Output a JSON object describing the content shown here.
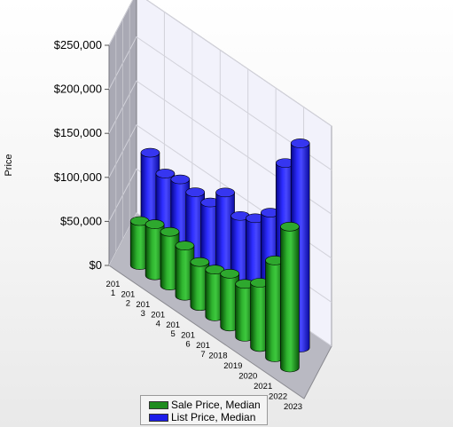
{
  "chart_data": {
    "type": "bar",
    "title": "",
    "xlabel": "",
    "ylabel": "Price",
    "ylim": [
      0,
      250000
    ],
    "y_ticks": [
      "$0",
      "$50,000",
      "$100,000",
      "$150,000",
      "$200,000",
      "$250,000"
    ],
    "y_tick_values": [
      0,
      50000,
      100000,
      150000,
      200000,
      250000
    ],
    "categories": [
      "201\n1",
      "201\n2",
      "201\n3",
      "201\n4",
      "201\n5",
      "201\n6",
      "201\n7",
      "2018",
      "2019",
      "2020",
      "2021",
      "2022",
      "2023"
    ],
    "series": [
      {
        "name": "Sale Price, Median",
        "color": "#1e8c1e",
        "values": [
          null,
          50000,
          58000,
          61000,
          57000,
          50000,
          53000,
          60000,
          60000,
          73000,
          110000,
          160000,
          null
        ]
      },
      {
        "name": "List Price, Median",
        "color": "#1c1ce8",
        "values": [
          null,
          105000,
          93000,
          98000,
          95000,
          95000,
          118000,
          103000,
          112000,
          130000,
          198000,
          232000,
          null
        ]
      }
    ],
    "grid": true,
    "legend": "bottom"
  }
}
